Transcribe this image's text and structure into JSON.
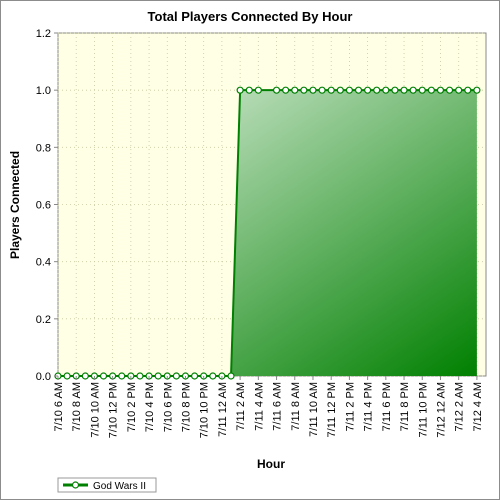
{
  "chart_data": {
    "type": "area",
    "title": "Total Players Connected By Hour",
    "xlabel": "Hour",
    "ylabel": "Players Connected",
    "ylim": [
      0,
      1.2
    ],
    "yticks": [
      "0.0",
      "0.2",
      "0.4",
      "0.6",
      "0.8",
      "1.0",
      "1.2"
    ],
    "grid": true,
    "legend_position": "bottom-left",
    "colors": {
      "plot_background": "#ffffe6",
      "grid": "#c8c8a0",
      "line": "#008000",
      "marker_fill": "#ffffff",
      "area_light": "#e8f4e8",
      "area_dark": "#008000"
    },
    "categories": [
      "7/10 6 AM",
      "7/10 8 AM",
      "7/10 10 AM",
      "7/10 12 PM",
      "7/10 2 PM",
      "7/10 4 PM",
      "7/10 6 PM",
      "7/10 8 PM",
      "7/10 10 PM",
      "7/11 12 AM",
      "7/11 2 AM",
      "7/11 4 AM",
      "7/11 6 AM",
      "7/11 8 AM",
      "7/11 10 AM",
      "7/11 12 PM",
      "7/11 2 PM",
      "7/11 4 PM",
      "7/11 6 PM",
      "7/11 8 PM",
      "7/11 10 PM",
      "7/12 12 AM",
      "7/12 2 AM",
      "7/12 4 AM"
    ],
    "series": [
      {
        "name": "God Wars II",
        "points": [
          {
            "h": 0,
            "y": 0
          },
          {
            "h": 1,
            "y": 0
          },
          {
            "h": 2,
            "y": 0
          },
          {
            "h": 3,
            "y": 0
          },
          {
            "h": 4,
            "y": 0
          },
          {
            "h": 5,
            "y": 0
          },
          {
            "h": 6,
            "y": 0
          },
          {
            "h": 7,
            "y": 0
          },
          {
            "h": 8,
            "y": 0
          },
          {
            "h": 9,
            "y": 0
          },
          {
            "h": 10,
            "y": 0
          },
          {
            "h": 11,
            "y": 0
          },
          {
            "h": 12,
            "y": 0
          },
          {
            "h": 13,
            "y": 0
          },
          {
            "h": 14,
            "y": 0
          },
          {
            "h": 15,
            "y": 0
          },
          {
            "h": 16,
            "y": 0
          },
          {
            "h": 17,
            "y": 0
          },
          {
            "h": 18,
            "y": 0
          },
          {
            "h": 19,
            "y": 0
          },
          {
            "h": 20,
            "y": 1
          },
          {
            "h": 21,
            "y": 1
          },
          {
            "h": 22,
            "y": 1
          },
          {
            "h": 24,
            "y": 1
          },
          {
            "h": 25,
            "y": 1
          },
          {
            "h": 26,
            "y": 1
          },
          {
            "h": 27,
            "y": 1
          },
          {
            "h": 28,
            "y": 1
          },
          {
            "h": 29,
            "y": 1
          },
          {
            "h": 30,
            "y": 1
          },
          {
            "h": 31,
            "y": 1
          },
          {
            "h": 32,
            "y": 1
          },
          {
            "h": 33,
            "y": 1
          },
          {
            "h": 34,
            "y": 1
          },
          {
            "h": 35,
            "y": 1
          },
          {
            "h": 36,
            "y": 1
          },
          {
            "h": 37,
            "y": 1
          },
          {
            "h": 38,
            "y": 1
          },
          {
            "h": 39,
            "y": 1
          },
          {
            "h": 40,
            "y": 1
          },
          {
            "h": 41,
            "y": 1
          },
          {
            "h": 42,
            "y": 1
          },
          {
            "h": 43,
            "y": 1
          },
          {
            "h": 44,
            "y": 1
          },
          {
            "h": 45,
            "y": 1
          },
          {
            "h": 46,
            "y": 1
          }
        ]
      }
    ]
  }
}
